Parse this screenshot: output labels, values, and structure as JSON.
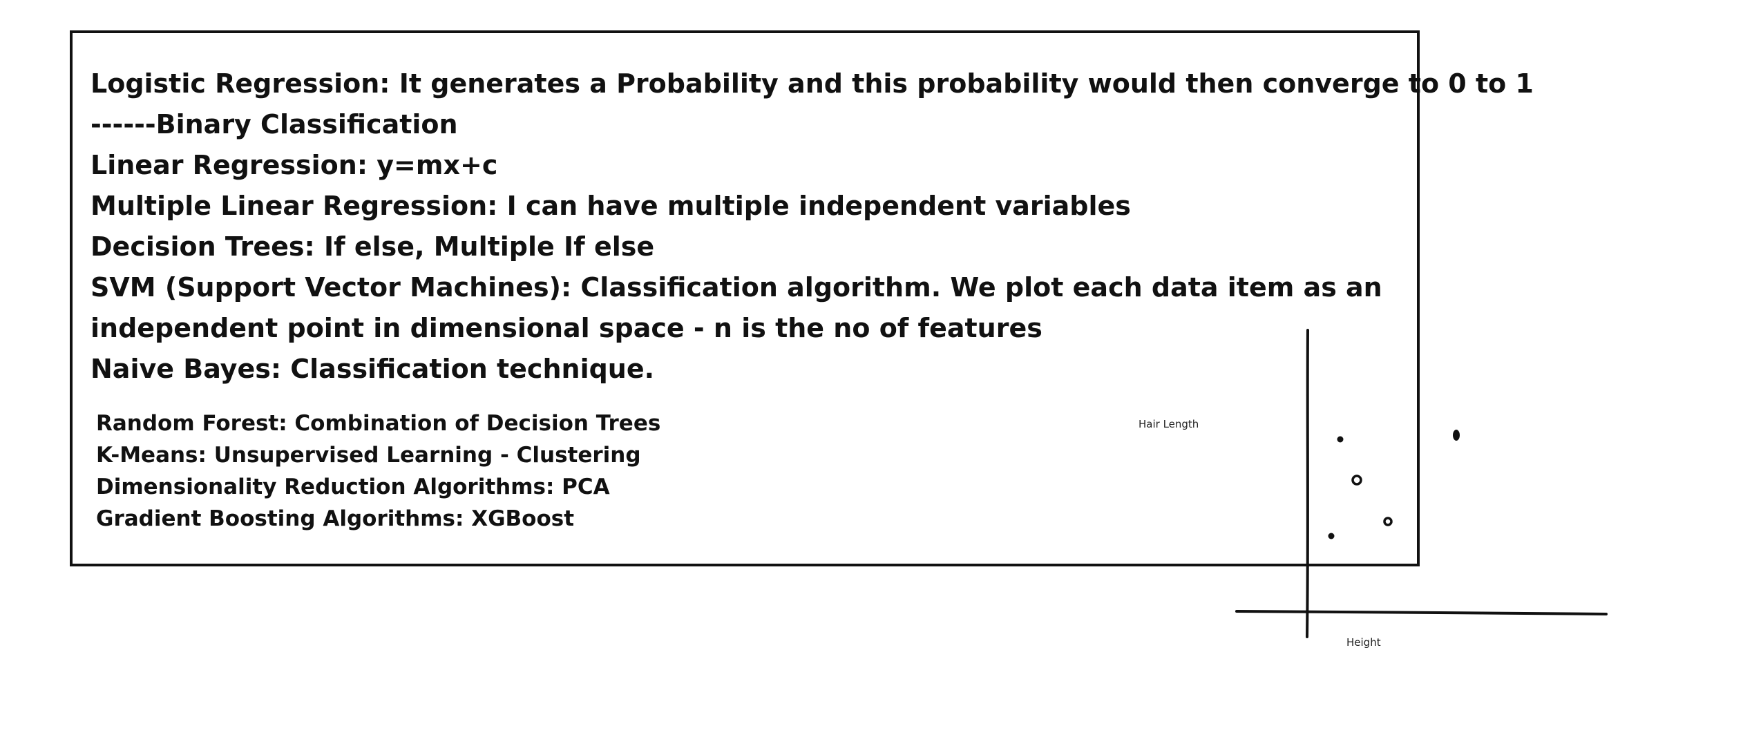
{
  "notes": {
    "main_lines": [
      "Logistic Regression: It generates a Probability and this probability would then converge to 0 to 1",
      "------Binary Classification",
      "Linear Regression: y=mx+c",
      "Multiple Linear Regression: I can have multiple independent variables",
      "Decision Trees: If else, Multiple If else",
      "SVM (Support Vector Machines): Classification algorithm. We plot each data item as an",
      "independent point in dimensional space - n is the no of features",
      "Naive Bayes: Classification technique."
    ],
    "small_lines": [
      "Random Forest: Combination of Decision Trees",
      "K-Means: Unsupervised Learning - Clustering",
      "Dimensionality Reduction Algorithms: PCA",
      "Gradient Boosting Algorithms: XGBoost"
    ]
  },
  "sketch": {
    "y_label": "Hair Length",
    "x_label": "Height"
  }
}
